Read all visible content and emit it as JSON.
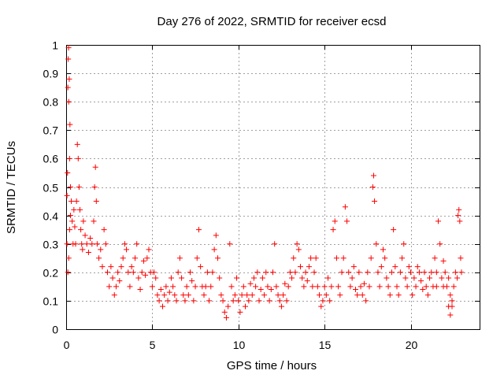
{
  "chart_data": {
    "type": "scatter",
    "title": "Day 276 of 2022, SRMTID for receiver ecsd",
    "xlabel": "GPS time / hours",
    "ylabel": "SRMTID / TECUs",
    "xlim": [
      0,
      24
    ],
    "ylim": [
      0,
      1
    ],
    "xticks": [
      0,
      5,
      10,
      15,
      20
    ],
    "yticks": [
      0,
      0.1,
      0.2,
      0.3,
      0.4,
      0.5,
      0.6,
      0.7,
      0.8,
      0.9,
      1
    ],
    "marker": "+",
    "grid": true,
    "color": "#ff0000",
    "series": [
      {
        "name": "SRMTID",
        "points": [
          [
            0.05,
            0.47
          ],
          [
            0.08,
            0.55
          ],
          [
            0.1,
            0.85
          ],
          [
            0.12,
            0.95
          ],
          [
            0.14,
            0.99
          ],
          [
            0.15,
            0.8
          ],
          [
            0.18,
            0.88
          ],
          [
            0.2,
            0.6
          ],
          [
            0.22,
            0.72
          ],
          [
            0.25,
            0.4
          ],
          [
            0.05,
            0.3
          ],
          [
            0.1,
            0.2
          ],
          [
            0.15,
            0.25
          ],
          [
            0.2,
            0.35
          ],
          [
            0.25,
            0.5
          ],
          [
            0.3,
            0.45
          ],
          [
            0.35,
            0.38
          ],
          [
            0.4,
            0.3
          ],
          [
            0.45,
            0.42
          ],
          [
            0.5,
            0.36
          ],
          [
            0.55,
            0.3
          ],
          [
            0.6,
            0.45
          ],
          [
            0.65,
            0.65
          ],
          [
            0.7,
            0.6
          ],
          [
            0.75,
            0.5
          ],
          [
            0.8,
            0.42
          ],
          [
            0.85,
            0.35
          ],
          [
            0.9,
            0.3
          ],
          [
            0.95,
            0.28
          ],
          [
            1.0,
            0.38
          ],
          [
            1.1,
            0.33
          ],
          [
            1.2,
            0.3
          ],
          [
            1.3,
            0.27
          ],
          [
            1.4,
            0.32
          ],
          [
            1.5,
            0.3
          ],
          [
            1.6,
            0.38
          ],
          [
            1.65,
            0.5
          ],
          [
            1.7,
            0.57
          ],
          [
            1.75,
            0.45
          ],
          [
            1.8,
            0.3
          ],
          [
            1.9,
            0.25
          ],
          [
            2.0,
            0.28
          ],
          [
            2.1,
            0.22
          ],
          [
            2.2,
            0.35
          ],
          [
            2.3,
            0.3
          ],
          [
            2.4,
            0.2
          ],
          [
            2.5,
            0.15
          ],
          [
            2.6,
            0.22
          ],
          [
            2.7,
            0.18
          ],
          [
            2.8,
            0.12
          ],
          [
            2.9,
            0.15
          ],
          [
            3.0,
            0.2
          ],
          [
            3.1,
            0.17
          ],
          [
            3.2,
            0.22
          ],
          [
            3.3,
            0.25
          ],
          [
            3.4,
            0.3
          ],
          [
            3.5,
            0.28
          ],
          [
            3.6,
            0.2
          ],
          [
            3.7,
            0.15
          ],
          [
            3.8,
            0.22
          ],
          [
            3.9,
            0.2
          ],
          [
            4.0,
            0.25
          ],
          [
            4.1,
            0.3
          ],
          [
            4.2,
            0.18
          ],
          [
            4.3,
            0.14
          ],
          [
            4.4,
            0.2
          ],
          [
            4.5,
            0.24
          ],
          [
            4.6,
            0.19
          ],
          [
            4.7,
            0.25
          ],
          [
            4.8,
            0.28
          ],
          [
            4.9,
            0.2
          ],
          [
            5.0,
            0.15
          ],
          [
            5.1,
            0.2
          ],
          [
            5.2,
            0.18
          ],
          [
            5.3,
            0.12
          ],
          [
            5.4,
            0.1
          ],
          [
            5.5,
            0.14
          ],
          [
            5.6,
            0.08
          ],
          [
            5.7,
            0.12
          ],
          [
            5.8,
            0.15
          ],
          [
            5.9,
            0.1
          ],
          [
            6.0,
            0.13
          ],
          [
            6.1,
            0.18
          ],
          [
            6.2,
            0.15
          ],
          [
            6.3,
            0.12
          ],
          [
            6.4,
            0.1
          ],
          [
            6.5,
            0.2
          ],
          [
            6.6,
            0.25
          ],
          [
            6.7,
            0.18
          ],
          [
            6.8,
            0.12
          ],
          [
            6.9,
            0.1
          ],
          [
            7.0,
            0.15
          ],
          [
            7.1,
            0.12
          ],
          [
            7.2,
            0.2
          ],
          [
            7.3,
            0.17
          ],
          [
            7.4,
            0.1
          ],
          [
            7.5,
            0.15
          ],
          [
            7.6,
            0.25
          ],
          [
            7.7,
            0.35
          ],
          [
            7.8,
            0.22
          ],
          [
            7.9,
            0.15
          ],
          [
            8.0,
            0.12
          ],
          [
            8.1,
            0.15
          ],
          [
            8.2,
            0.2
          ],
          [
            8.3,
            0.1
          ],
          [
            8.4,
            0.15
          ],
          [
            8.5,
            0.2
          ],
          [
            8.6,
            0.28
          ],
          [
            8.7,
            0.33
          ],
          [
            8.8,
            0.25
          ],
          [
            8.9,
            0.18
          ],
          [
            9.0,
            0.12
          ],
          [
            9.1,
            0.1
          ],
          [
            9.2,
            0.06
          ],
          [
            9.3,
            0.04
          ],
          [
            9.4,
            0.08
          ],
          [
            9.5,
            0.3
          ],
          [
            9.6,
            0.15
          ],
          [
            9.7,
            0.1
          ],
          [
            9.8,
            0.12
          ],
          [
            9.9,
            0.18
          ],
          [
            10.0,
            0.1
          ],
          [
            10.1,
            0.06
          ],
          [
            10.2,
            0.12
          ],
          [
            10.3,
            0.15
          ],
          [
            10.4,
            0.08
          ],
          [
            10.5,
            0.12
          ],
          [
            10.6,
            0.1
          ],
          [
            10.7,
            0.16
          ],
          [
            10.8,
            0.12
          ],
          [
            10.9,
            0.18
          ],
          [
            11.0,
            0.15
          ],
          [
            11.1,
            0.2
          ],
          [
            11.2,
            0.1
          ],
          [
            11.3,
            0.14
          ],
          [
            11.4,
            0.18
          ],
          [
            11.5,
            0.12
          ],
          [
            11.6,
            0.2
          ],
          [
            11.7,
            0.15
          ],
          [
            11.8,
            0.1
          ],
          [
            11.9,
            0.14
          ],
          [
            12.0,
            0.2
          ],
          [
            12.1,
            0.3
          ],
          [
            12.2,
            0.15
          ],
          [
            12.3,
            0.12
          ],
          [
            12.4,
            0.1
          ],
          [
            12.5,
            0.08
          ],
          [
            12.6,
            0.12
          ],
          [
            12.7,
            0.16
          ],
          [
            12.8,
            0.1
          ],
          [
            12.9,
            0.15
          ],
          [
            13.0,
            0.2
          ],
          [
            13.1,
            0.18
          ],
          [
            13.2,
            0.25
          ],
          [
            13.3,
            0.2
          ],
          [
            13.4,
            0.3
          ],
          [
            13.5,
            0.28
          ],
          [
            13.6,
            0.22
          ],
          [
            13.7,
            0.18
          ],
          [
            13.8,
            0.15
          ],
          [
            13.9,
            0.2
          ],
          [
            14.0,
            0.17
          ],
          [
            14.1,
            0.22
          ],
          [
            14.2,
            0.25
          ],
          [
            14.3,
            0.15
          ],
          [
            14.4,
            0.2
          ],
          [
            14.5,
            0.25
          ],
          [
            14.6,
            0.15
          ],
          [
            14.7,
            0.12
          ],
          [
            14.8,
            0.08
          ],
          [
            14.9,
            0.1
          ],
          [
            15.0,
            0.15
          ],
          [
            15.1,
            0.12
          ],
          [
            15.2,
            0.18
          ],
          [
            15.3,
            0.1
          ],
          [
            15.4,
            0.15
          ],
          [
            15.5,
            0.35
          ],
          [
            15.6,
            0.38
          ],
          [
            15.7,
            0.25
          ],
          [
            15.8,
            0.15
          ],
          [
            15.9,
            0.12
          ],
          [
            16.0,
            0.2
          ],
          [
            16.1,
            0.25
          ],
          [
            16.2,
            0.43
          ],
          [
            16.3,
            0.38
          ],
          [
            16.4,
            0.2
          ],
          [
            16.5,
            0.15
          ],
          [
            16.6,
            0.18
          ],
          [
            16.7,
            0.22
          ],
          [
            16.8,
            0.14
          ],
          [
            16.9,
            0.12
          ],
          [
            17.0,
            0.2
          ],
          [
            17.1,
            0.15
          ],
          [
            17.2,
            0.12
          ],
          [
            17.3,
            0.16
          ],
          [
            17.4,
            0.1
          ],
          [
            17.5,
            0.2
          ],
          [
            17.6,
            0.15
          ],
          [
            17.7,
            0.25
          ],
          [
            17.8,
            0.5
          ],
          [
            17.85,
            0.54
          ],
          [
            17.9,
            0.45
          ],
          [
            18.0,
            0.3
          ],
          [
            18.1,
            0.2
          ],
          [
            18.2,
            0.15
          ],
          [
            18.3,
            0.22
          ],
          [
            18.4,
            0.28
          ],
          [
            18.5,
            0.25
          ],
          [
            18.6,
            0.18
          ],
          [
            18.7,
            0.15
          ],
          [
            18.8,
            0.12
          ],
          [
            18.9,
            0.2
          ],
          [
            19.0,
            0.35
          ],
          [
            19.1,
            0.22
          ],
          [
            19.2,
            0.15
          ],
          [
            19.3,
            0.12
          ],
          [
            19.4,
            0.2
          ],
          [
            19.5,
            0.25
          ],
          [
            19.6,
            0.3
          ],
          [
            19.7,
            0.18
          ],
          [
            19.8,
            0.15
          ],
          [
            19.9,
            0.22
          ],
          [
            20.0,
            0.2
          ],
          [
            20.1,
            0.12
          ],
          [
            20.2,
            0.18
          ],
          [
            20.3,
            0.15
          ],
          [
            20.4,
            0.22
          ],
          [
            20.5,
            0.2
          ],
          [
            20.6,
            0.17
          ],
          [
            20.7,
            0.14
          ],
          [
            20.8,
            0.2
          ],
          [
            20.9,
            0.15
          ],
          [
            21.0,
            0.12
          ],
          [
            21.1,
            0.18
          ],
          [
            21.2,
            0.2
          ],
          [
            21.3,
            0.15
          ],
          [
            21.4,
            0.25
          ],
          [
            21.5,
            0.2
          ],
          [
            21.6,
            0.38
          ],
          [
            21.7,
            0.3
          ],
          [
            21.8,
            0.18
          ],
          [
            21.9,
            0.15
          ],
          [
            22.0,
            0.2
          ],
          [
            22.1,
            0.15
          ],
          [
            22.2,
            0.08
          ],
          [
            22.3,
            0.05
          ],
          [
            22.4,
            0.1
          ],
          [
            22.5,
            0.15
          ],
          [
            22.6,
            0.2
          ],
          [
            22.7,
            0.18
          ],
          [
            22.75,
            0.4
          ],
          [
            22.8,
            0.42
          ],
          [
            22.85,
            0.38
          ],
          [
            22.9,
            0.25
          ],
          [
            22.95,
            0.2
          ],
          [
            22.4,
            0.08
          ],
          [
            22.3,
            0.12
          ],
          [
            22.2,
            0.18
          ],
          [
            21.9,
            0.24
          ],
          [
            21.5,
            0.15
          ]
        ]
      }
    ]
  }
}
